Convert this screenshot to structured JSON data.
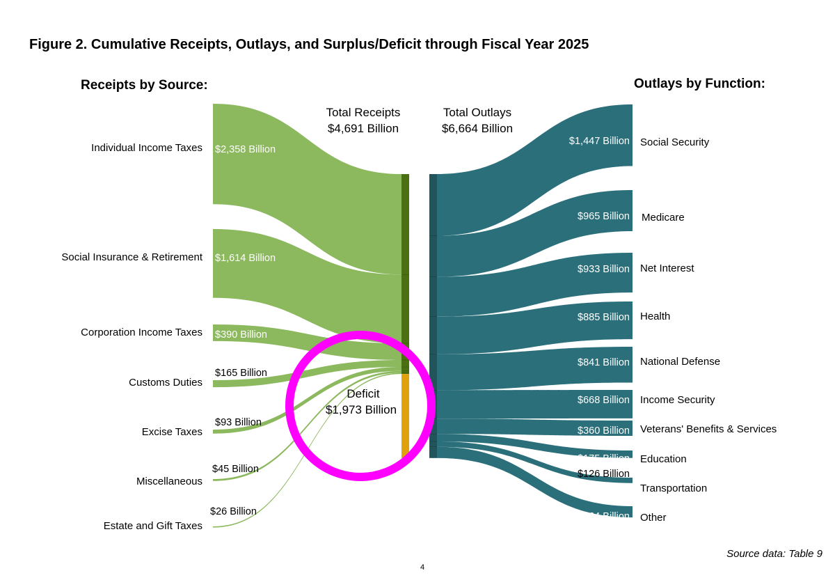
{
  "page": {
    "title": "Figure 2. Cumulative Receipts, Outlays, and Surplus/Deficit through Fiscal Year 2025",
    "source": "Source data: Table 9",
    "page_number": "4"
  },
  "colors": {
    "receipts_flow": "#8cb85e",
    "receipts_bar": "#4a7012",
    "outlays_flow": "#2b6f7a",
    "outlays_bar": "#22545c",
    "deficit": "#e0a20c",
    "highlight_circle": "#ff00ff"
  },
  "chart_data": {
    "type": "sankey",
    "title": "Figure 2. Cumulative Receipts, Outlays, and Surplus/Deficit through Fiscal Year 2025",
    "units": "Billion",
    "left_header": "Receipts by Source:",
    "right_header": "Outlays by Function:",
    "total_receipts": {
      "label": "Total Receipts",
      "value_label": "$4,691 Billion",
      "value": 4691
    },
    "total_outlays": {
      "label": "Total Outlays",
      "value_label": "$6,664 Billion",
      "value": 6664
    },
    "deficit": {
      "label": "Deficit",
      "value_label": "$1,973 Billion",
      "value": 1973
    },
    "receipts": [
      {
        "name": "Individual Income Taxes",
        "value": 2358,
        "value_label": "$2,358 Billion"
      },
      {
        "name": "Social Insurance & Retirement",
        "value": 1614,
        "value_label": "$1,614 Billion"
      },
      {
        "name": "Corporation Income Taxes",
        "value": 390,
        "value_label": "$390 Billion"
      },
      {
        "name": "Customs Duties",
        "value": 165,
        "value_label": "$165 Billion"
      },
      {
        "name": "Excise Taxes",
        "value": 93,
        "value_label": "$93 Billion"
      },
      {
        "name": "Miscellaneous",
        "value": 45,
        "value_label": "$45 Billion"
      },
      {
        "name": "Estate and Gift Taxes",
        "value": 26,
        "value_label": "$26 Billion"
      }
    ],
    "outlays": [
      {
        "name": "Social Security",
        "value": 1447,
        "value_label": "$1,447 Billion"
      },
      {
        "name": "Medicare",
        "value": 965,
        "value_label": "$965 Billion"
      },
      {
        "name": "Net Interest",
        "value": 933,
        "value_label": "$933 Billion"
      },
      {
        "name": "Health",
        "value": 885,
        "value_label": "$885 Billion"
      },
      {
        "name": "National Defense",
        "value": 841,
        "value_label": "$841 Billion"
      },
      {
        "name": "Income Security",
        "value": 668,
        "value_label": "$668 Billion"
      },
      {
        "name": "Veterans' Benefits & Services",
        "value": 360,
        "value_label": "$360 Billion"
      },
      {
        "name": "Education",
        "value": 175,
        "value_label": "$175 Billion"
      },
      {
        "name": "Transportation",
        "value": 126,
        "value_label": "$126 Billion"
      },
      {
        "name": "Other",
        "value": 264,
        "value_label": "$264 Billion"
      }
    ]
  }
}
